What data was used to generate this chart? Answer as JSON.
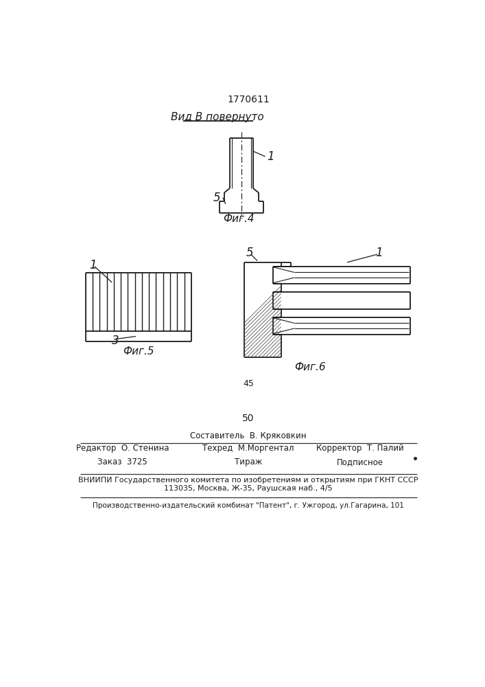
{
  "patent_number": "1770611",
  "line_color": "#1a1a1a",
  "view_label": "Вид В повернуто",
  "fig4_label": "Фиг.4",
  "fig5_label": "Фиг.5",
  "fig6_label": "Фиг.6",
  "label1": "1",
  "label3": "3",
  "label5_fig4": "5",
  "label5_fig6": "5",
  "label1_fig6": "1",
  "label1_fig5": "1",
  "page_number_top": "45",
  "page_number_bottom": "50",
  "footer_line1": "Составитель  В. Кряковкин",
  "footer_line2_left": "Редактор  О. Стенина",
  "footer_line2_mid": "Техред  М.Моргентал",
  "footer_line2_right": "Корректор  Т. Палий",
  "footer_line3_left": "Заказ  3725",
  "footer_line3_mid": "Тираж",
  "footer_line3_right": "Подписное",
  "footer_line4": "ВНИИПИ Государственного комитета по изобретениям и открытиям при ГКНТ СССР",
  "footer_line5": "113035, Москва, Ж-35, Раушская наб., 4/5",
  "footer_line6": "Производственно-издательский комбинат \"Патент\", г. Ужгород, ул.Гагарина, 101"
}
